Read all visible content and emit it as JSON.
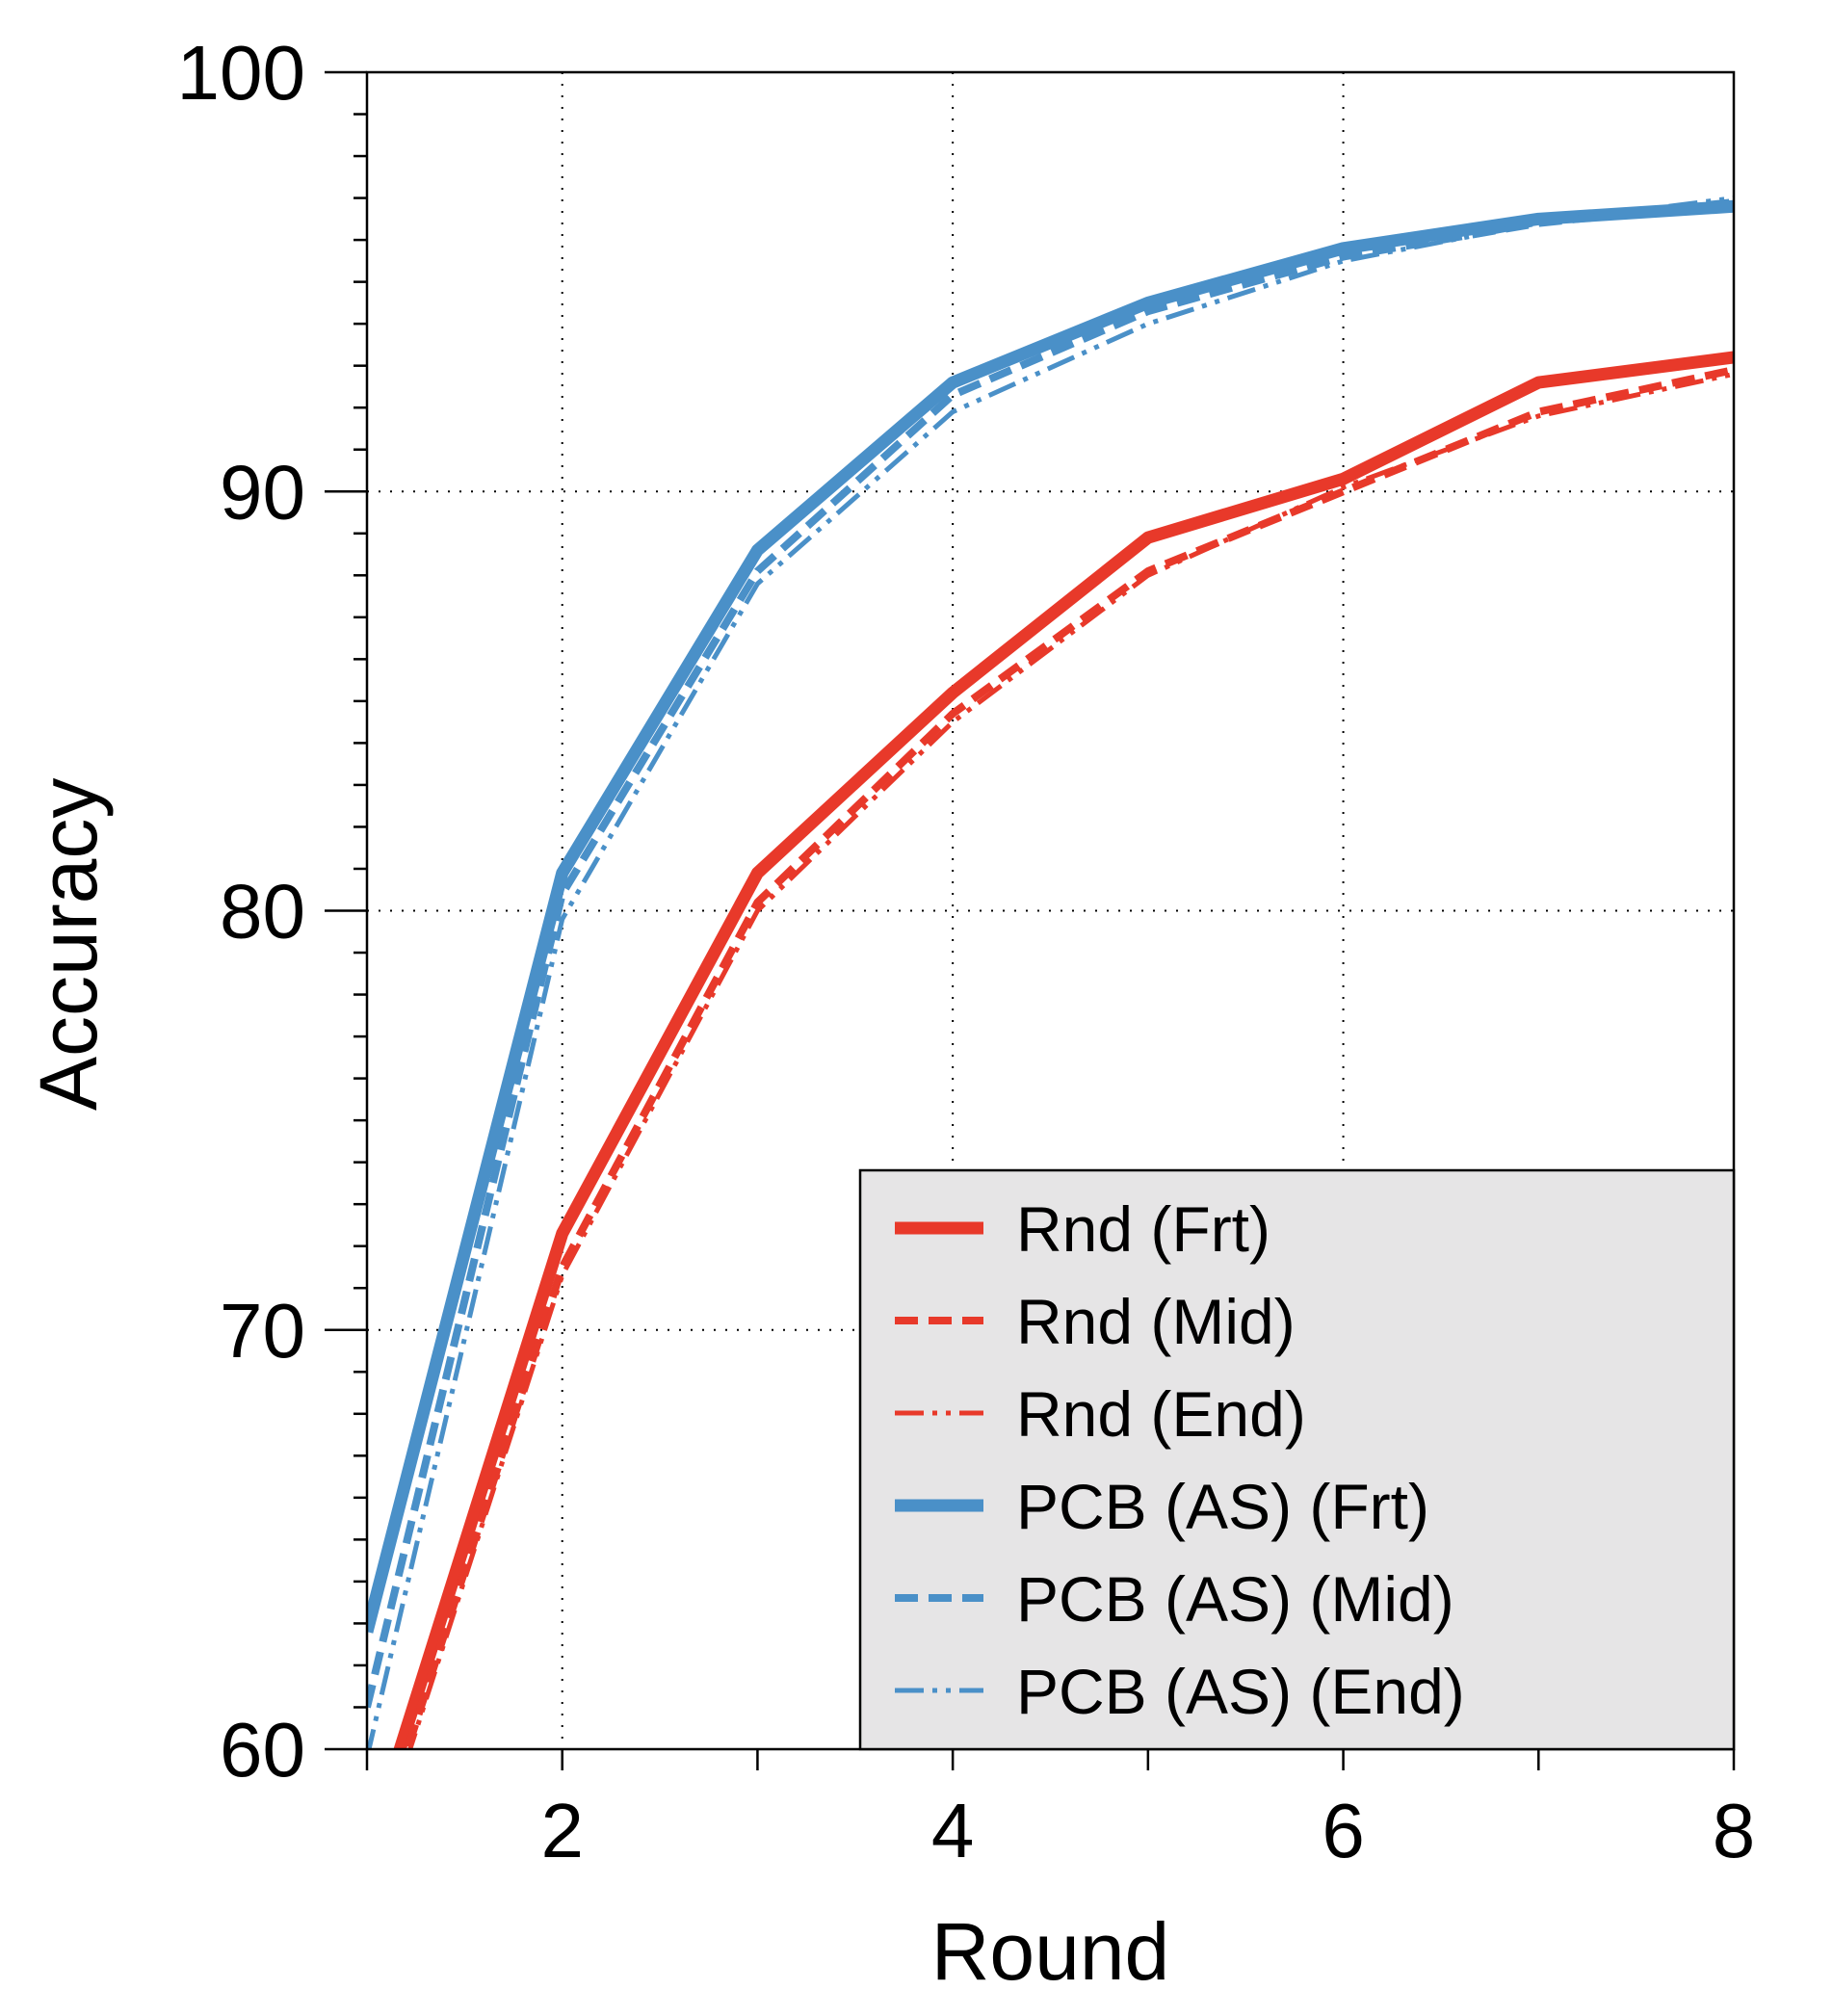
{
  "chart_data": {
    "type": "line",
    "title": "",
    "xlabel": "Round",
    "ylabel": "Accuracy",
    "xlim": [
      1,
      8
    ],
    "ylim": [
      60,
      100
    ],
    "xticks": [
      2,
      4,
      6,
      8
    ],
    "yticks": [
      60,
      70,
      80,
      90,
      100
    ],
    "x_minor_ticks": [
      1,
      3,
      5,
      7
    ],
    "y_minor_step": 1,
    "grid": "dotted",
    "legend_position": "lower-right",
    "x": [
      1,
      2,
      3,
      4,
      5,
      6,
      7,
      8
    ],
    "series": [
      {
        "name": "Rnd (Frt)",
        "color": "#e8392a",
        "style": "solid",
        "width": "thick",
        "values": [
          57.5,
          72.3,
          80.9,
          85.2,
          88.9,
          90.3,
          92.6,
          93.2
        ]
      },
      {
        "name": "Rnd (Mid)",
        "color": "#e8392a",
        "style": "dashed",
        "width": "medium",
        "values": [
          57.0,
          71.5,
          80.2,
          84.7,
          88.1,
          90.0,
          91.9,
          92.9
        ]
      },
      {
        "name": "Rnd (End)",
        "color": "#e8392a",
        "style": "dash-dot-dot",
        "width": "thin",
        "values": [
          56.8,
          71.3,
          80.0,
          84.5,
          88.0,
          90.1,
          91.8,
          92.8
        ]
      },
      {
        "name": "PCB (AS) (Frt)",
        "color": "#4a90c8",
        "style": "solid",
        "width": "thick",
        "values": [
          62.8,
          80.9,
          88.6,
          92.6,
          94.5,
          95.8,
          96.5,
          96.8
        ]
      },
      {
        "name": "PCB (AS) (Mid)",
        "color": "#4a90c8",
        "style": "dashed",
        "width": "medium",
        "values": [
          61.0,
          80.4,
          88.1,
          92.3,
          94.3,
          95.6,
          96.4,
          96.9
        ]
      },
      {
        "name": "PCB (AS) (End)",
        "color": "#4a90c8",
        "style": "dash-dot-dot",
        "width": "thin",
        "values": [
          59.8,
          79.8,
          87.8,
          91.9,
          94.0,
          95.5,
          96.4,
          97.0
        ]
      }
    ],
    "legend_background": "#e6e5e6"
  }
}
